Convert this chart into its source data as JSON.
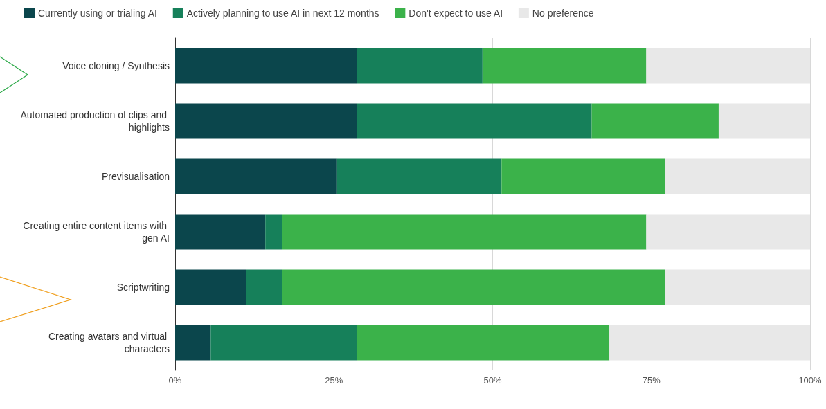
{
  "chart_data": {
    "type": "bar",
    "orientation": "horizontal",
    "stacked": true,
    "categories": [
      "Voice cloning / Synthesis",
      "Automated production of clips and highlights",
      "Previsualisation",
      "Creating entire content items with gen AI",
      "Scriptwriting",
      "Creating avatars and virtual characters"
    ],
    "series": [
      {
        "name": "Currently using or trialing AI",
        "color": "#0b464c",
        "values": [
          28.6,
          28.6,
          25.5,
          14.2,
          11.2,
          5.6
        ]
      },
      {
        "name": "Actively planning to use AI in next 12 months",
        "color": "#16805a",
        "values": [
          19.8,
          37,
          25.9,
          2.7,
          5.7,
          23
        ]
      },
      {
        "name": "Don't expect to use AI",
        "color": "#3bb24a",
        "values": [
          25.8,
          20,
          25.7,
          57.3,
          60.2,
          39.8
        ]
      },
      {
        "name": "No preference",
        "color": "#e8e8e8",
        "values": [
          25.8,
          14.4,
          22.9,
          25.8,
          22.9,
          31.6
        ]
      }
    ],
    "xlim": [
      0,
      100
    ],
    "xticks": [
      {
        "value": 0,
        "label": "0%"
      },
      {
        "value": 25,
        "label": "25%"
      },
      {
        "value": 50,
        "label": "50%"
      },
      {
        "value": 75,
        "label": "75%"
      },
      {
        "value": 100,
        "label": "100%"
      }
    ],
    "grid": "x",
    "legend": "top"
  }
}
